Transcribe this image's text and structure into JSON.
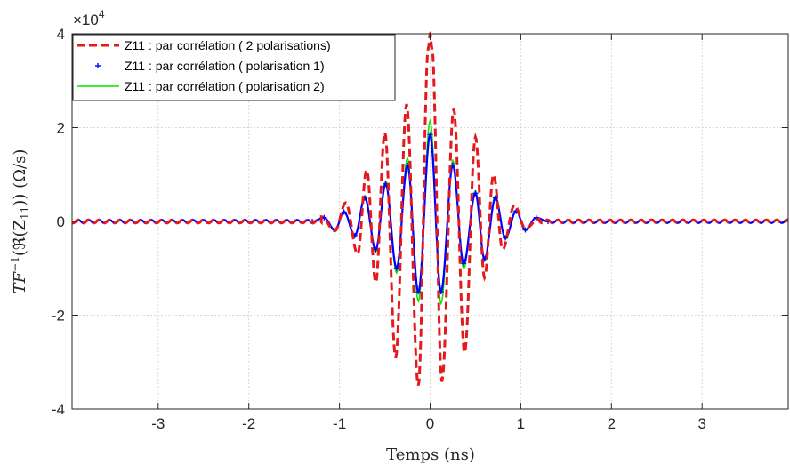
{
  "chart_data": {
    "type": "line",
    "xlabel": "Temps (ns)",
    "ylabel_parts": [
      "TF",
      "−1",
      "(ℜ(Z",
      "11",
      ")) (Ω/s)"
    ],
    "y_exponent_parts": [
      "×10",
      "4"
    ],
    "xlim": [
      -3.95,
      3.95
    ],
    "ylim": [
      -4,
      4
    ],
    "xticks": [
      -3,
      -2,
      -1,
      0,
      1,
      2,
      3
    ],
    "xtick_labels": [
      "-3",
      "-2",
      "-1",
      "0",
      "1",
      "2",
      "3"
    ],
    "yticks": [
      -4,
      -2,
      0,
      2,
      4
    ],
    "ytick_labels": [
      "-4",
      "-2",
      "0",
      "2",
      "4"
    ],
    "grid": true,
    "legend_position": "top-left",
    "series": [
      {
        "name": "Z11 : par corrélation ( 2 polarisations)",
        "color": "#e3191c",
        "style": "dashed",
        "x": [
          -1.2,
          -1.05,
          -0.93,
          -0.8,
          -0.7,
          -0.6,
          -0.5,
          -0.38,
          -0.26,
          -0.13,
          -0.02,
          0.0,
          0.02,
          0.13,
          0.26,
          0.38,
          0.5,
          0.6,
          0.7,
          0.8,
          0.93,
          1.05,
          1.2
        ],
        "y": [
          0.1,
          -0.2,
          0.4,
          -0.7,
          1.1,
          -1.3,
          1.9,
          -2.9,
          2.5,
          -3.5,
          3.7,
          4.0,
          3.7,
          -3.4,
          2.4,
          -2.8,
          1.8,
          -1.2,
          1.0,
          -0.6,
          0.35,
          -0.15,
          0.05
        ]
      },
      {
        "name": "Z11 : par corrélation ( polarisation 1)",
        "color": "#0000ff",
        "style": "plus-markers",
        "x": [
          -1.3,
          -1.17,
          -1.05,
          -0.95,
          -0.83,
          -0.72,
          -0.6,
          -0.49,
          -0.37,
          -0.25,
          -0.13,
          -0.0,
          0.12,
          0.25,
          0.37,
          0.5,
          0.6,
          0.72,
          0.83,
          0.95,
          1.05,
          1.17,
          1.3
        ],
        "y": [
          0.0,
          0.08,
          -0.18,
          0.2,
          -0.3,
          0.5,
          -0.6,
          0.8,
          -1.0,
          1.2,
          -1.5,
          1.85,
          -1.5,
          1.2,
          -0.9,
          0.6,
          -0.8,
          0.5,
          -0.35,
          0.22,
          -0.18,
          0.08,
          0.0
        ]
      },
      {
        "name": "Z11 : par corrélation ( polarisation 2)",
        "color": "#00e600",
        "style": "solid",
        "x": [
          -1.3,
          -1.17,
          -1.05,
          -0.95,
          -0.83,
          -0.72,
          -0.6,
          -0.49,
          -0.37,
          -0.25,
          -0.13,
          -0.0,
          0.12,
          0.25,
          0.37,
          0.5,
          0.6,
          0.72,
          0.83,
          0.95,
          1.05,
          1.17,
          1.3
        ],
        "y": [
          0.0,
          0.08,
          -0.2,
          0.22,
          -0.32,
          0.55,
          -0.65,
          0.85,
          -1.1,
          1.35,
          -1.7,
          2.15,
          -1.75,
          1.3,
          -1.0,
          0.65,
          -0.85,
          0.55,
          -0.38,
          0.25,
          -0.2,
          0.08,
          0.0
        ]
      }
    ]
  }
}
